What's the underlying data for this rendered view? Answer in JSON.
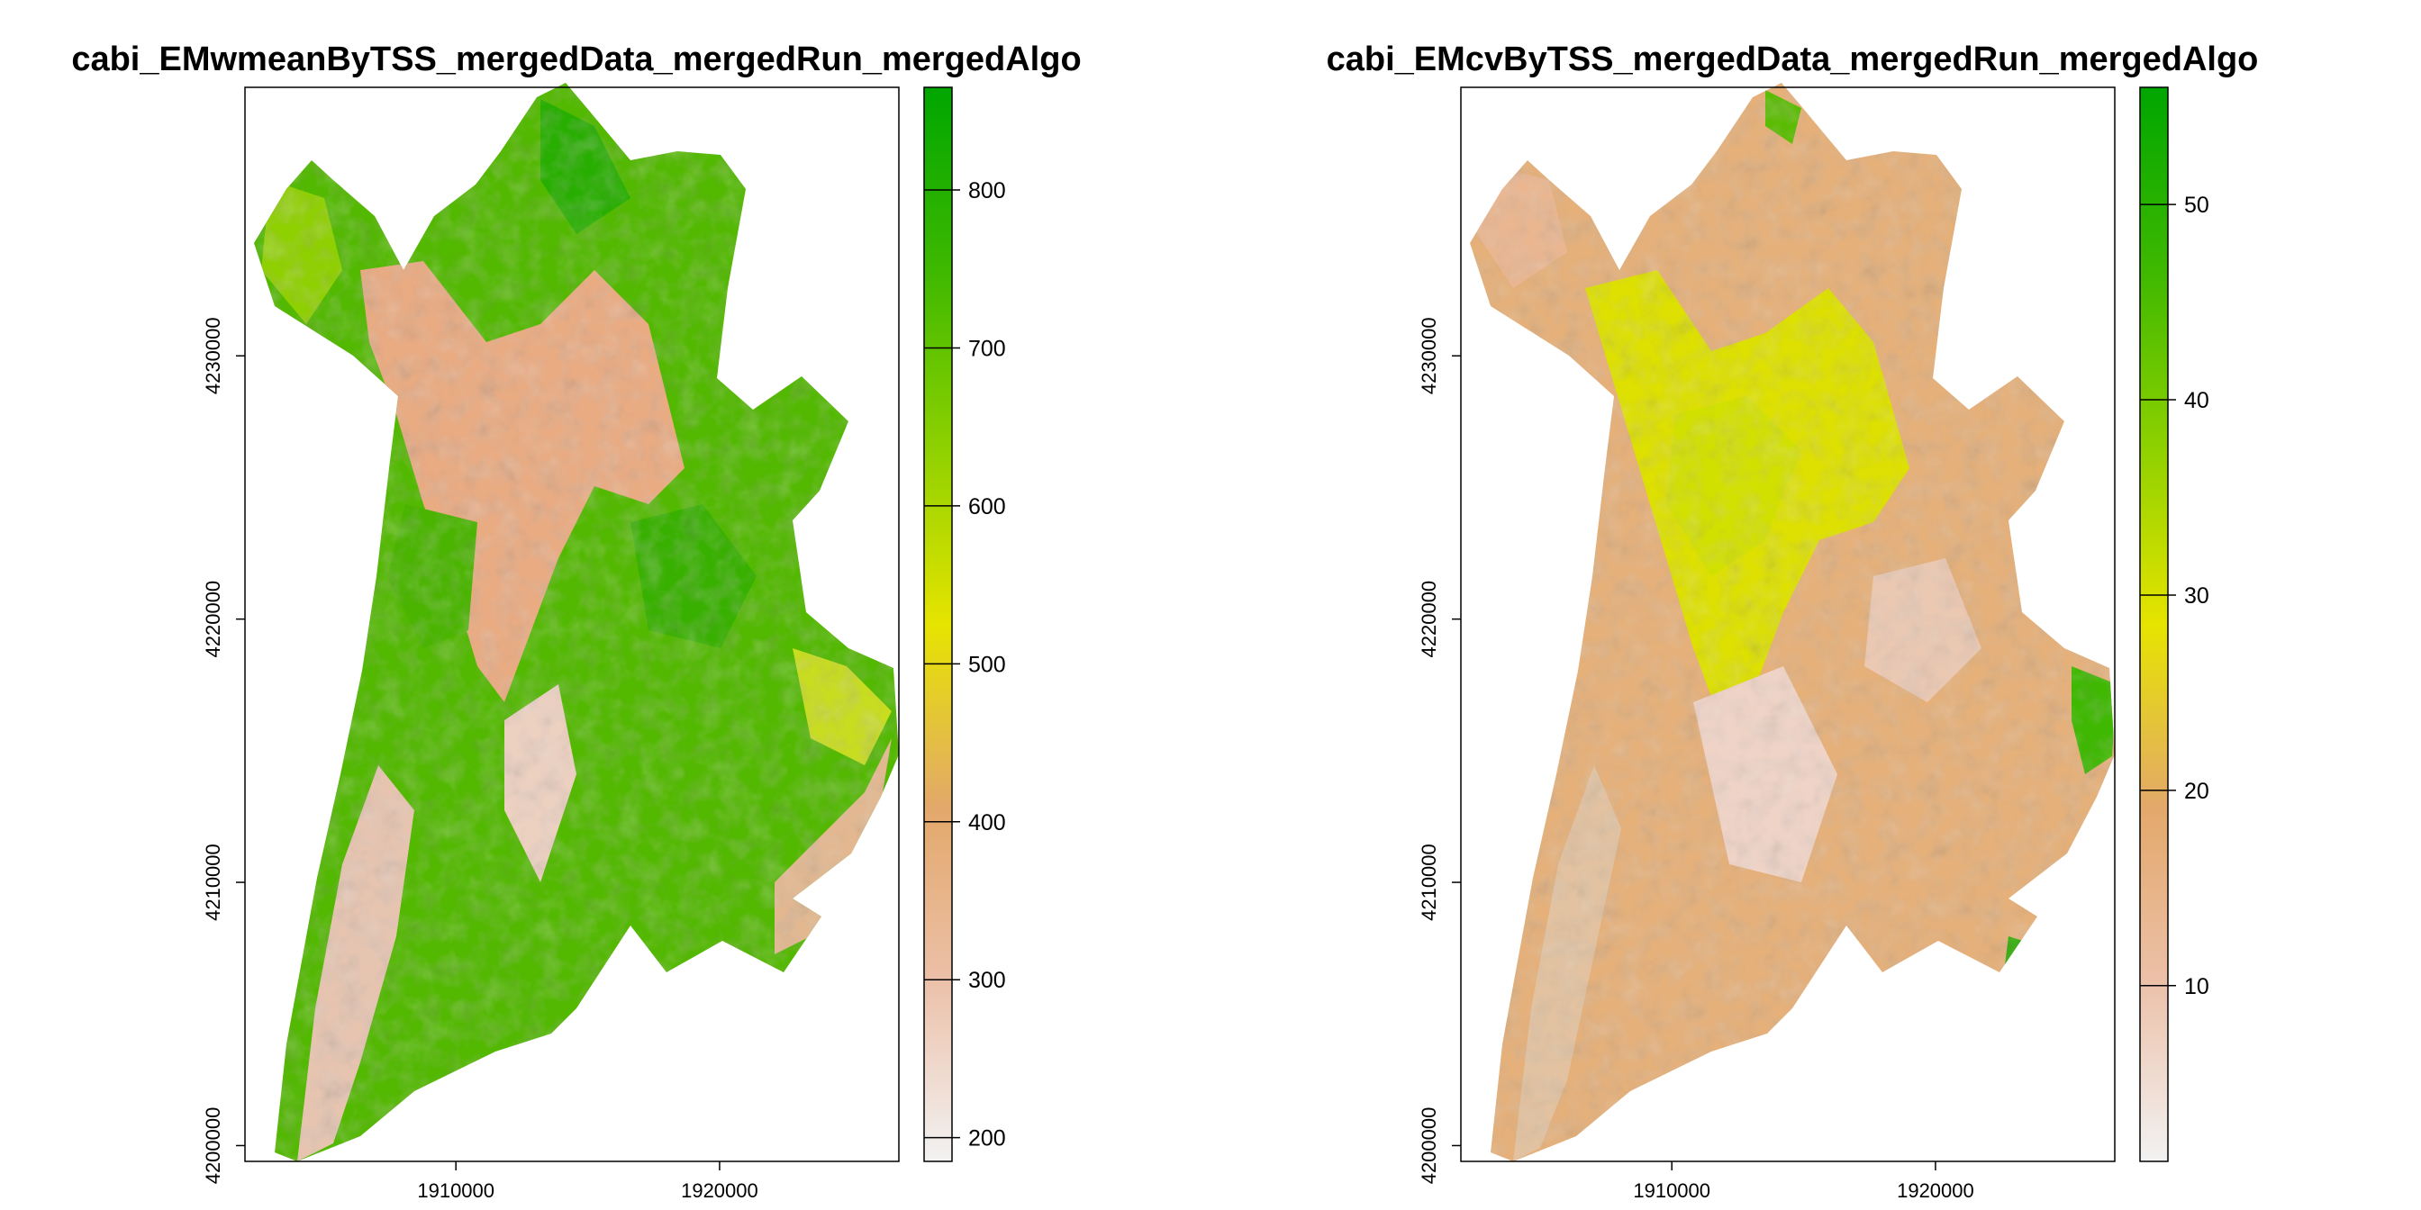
{
  "chart_data": [
    {
      "type": "heatmap",
      "title": "cabi_EMwmeanByTSS_mergedData_mergedRun_mergedAlgo",
      "xlabel": "",
      "ylabel": "",
      "xlim": [
        1902000,
        1926800
      ],
      "ylim": [
        4199400,
        4240200
      ],
      "x_ticks": [
        1910000,
        1920000
      ],
      "x_tick_labels": [
        "1910000",
        "1920000"
      ],
      "y_ticks": [
        4200000,
        4210000,
        4220000,
        4230000
      ],
      "y_tick_labels": [
        "4200000",
        "4210000",
        "4220000",
        "4230000"
      ],
      "colorbar": {
        "range": [
          185,
          865
        ],
        "ticks": [
          200,
          300,
          400,
          500,
          600,
          700,
          800
        ],
        "tick_labels": [
          "200",
          "300",
          "400",
          "500",
          "600",
          "700",
          "800"
        ],
        "colors": [
          "#f2f2f2",
          "#ecc0a8",
          "#e3a86a",
          "#e6e400",
          "#8bd000",
          "#3eb800",
          "#00a600"
        ]
      },
      "dominant_colors": {
        "background_fill": "#52b800",
        "valley_fill": "#e9ab82",
        "highlight": "#d6e600",
        "low": "#edd0c2"
      }
    },
    {
      "type": "heatmap",
      "title": "cabi_EMcvByTSS_mergedData_mergedRun_mergedAlgo",
      "xlabel": "",
      "ylabel": "",
      "xlim": [
        1902000,
        1926800
      ],
      "ylim": [
        4199400,
        4240200
      ],
      "x_ticks": [
        1910000,
        1920000
      ],
      "x_tick_labels": [
        "1910000",
        "1920000"
      ],
      "y_ticks": [
        4200000,
        4210000,
        4220000,
        4230000
      ],
      "y_tick_labels": [
        "4200000",
        "4210000",
        "4220000",
        "4230000"
      ],
      "colorbar": {
        "range": [
          1,
          56
        ],
        "ticks": [
          10,
          20,
          30,
          40,
          50
        ],
        "tick_labels": [
          "10",
          "20",
          "30",
          "40",
          "50"
        ],
        "colors": [
          "#f2f2f2",
          "#ecc0a8",
          "#e3a86a",
          "#e6e400",
          "#8bd000",
          "#3eb800",
          "#00a600"
        ]
      },
      "dominant_colors": {
        "background_fill": "#e5b07a",
        "valley_fill": "#dde000",
        "highlight": "#3eb800",
        "low": "#efd3c6"
      }
    }
  ]
}
